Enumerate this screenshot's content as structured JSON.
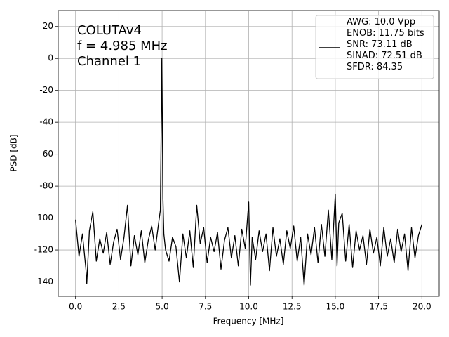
{
  "chart_data": {
    "type": "line",
    "xlabel": "Frequency [MHz]",
    "ylabel": "PSD [dB]",
    "annotation": [
      "COLUTAv4",
      "f = 4.985 MHz",
      "Channel 1"
    ],
    "xlim": [
      -1,
      21
    ],
    "ylim": [
      -149,
      30
    ],
    "xticks": [
      {
        "value": 0,
        "label": "0.0"
      },
      {
        "value": 2.5,
        "label": "2.5"
      },
      {
        "value": 5,
        "label": "5.0"
      },
      {
        "value": 7.5,
        "label": "7.5"
      },
      {
        "value": 10,
        "label": "10.0"
      },
      {
        "value": 12.5,
        "label": "12.5"
      },
      {
        "value": 15,
        "label": "15.0"
      },
      {
        "value": 17.5,
        "label": "17.5"
      },
      {
        "value": 20,
        "label": "20.0"
      }
    ],
    "yticks": [
      -140,
      -120,
      -100,
      -80,
      -60,
      -40,
      -20,
      0,
      20
    ],
    "grid": true,
    "legend": "upper right",
    "x": [
      0.0,
      0.2,
      0.4,
      0.6,
      0.65,
      0.8,
      1.0,
      1.2,
      1.4,
      1.6,
      1.8,
      2.0,
      2.2,
      2.4,
      2.6,
      2.8,
      3.0,
      3.2,
      3.4,
      3.6,
      3.8,
      4.0,
      4.2,
      4.4,
      4.6,
      4.8,
      4.9,
      4.985,
      5.05,
      5.1,
      5.2,
      5.4,
      5.6,
      5.8,
      6.0,
      6.2,
      6.4,
      6.6,
      6.8,
      7.0,
      7.2,
      7.4,
      7.6,
      7.8,
      8.0,
      8.2,
      8.4,
      8.6,
      8.8,
      9.0,
      9.2,
      9.4,
      9.6,
      9.8,
      10.0,
      10.1,
      10.2,
      10.4,
      10.6,
      10.8,
      11.0,
      11.2,
      11.4,
      11.6,
      11.8,
      12.0,
      12.2,
      12.4,
      12.6,
      12.8,
      13.0,
      13.2,
      13.4,
      13.6,
      13.8,
      14.0,
      14.2,
      14.4,
      14.6,
      14.8,
      15.0,
      15.1,
      15.2,
      15.4,
      15.6,
      15.8,
      16.0,
      16.2,
      16.4,
      16.6,
      16.8,
      17.0,
      17.2,
      17.4,
      17.6,
      17.8,
      18.0,
      18.2,
      18.4,
      18.6,
      18.8,
      19.0,
      19.2,
      19.4,
      19.6,
      19.8,
      20.0
    ],
    "series": [
      {
        "name": "AWG: 10.0 Vpp\nENOB: 11.75 bits\nSNR: 73.11 dB\nSINAD: 72.51 dB\nSFDR: 84.35",
        "color": "#000000",
        "values": [
          -101,
          -124,
          -110,
          -132,
          -141,
          -108,
          -96,
          -127,
          -113,
          -122,
          -109,
          -129,
          -115,
          -107,
          -126,
          -112,
          -92,
          -130,
          -111,
          -123,
          -108,
          -128,
          -114,
          -105,
          -120,
          -103,
          -95,
          0,
          -88,
          -110,
          -120,
          -127,
          -112,
          -118,
          -140,
          -110,
          -125,
          -108,
          -131,
          -92,
          -116,
          -106,
          -128,
          -112,
          -121,
          -109,
          -132,
          -114,
          -106,
          -125,
          -111,
          -130,
          -107,
          -119,
          -90,
          -142,
          -112,
          -126,
          -108,
          -121,
          -110,
          -133,
          -106,
          -124,
          -113,
          -129,
          -108,
          -119,
          -105,
          -127,
          -112,
          -142,
          -110,
          -123,
          -106,
          -128,
          -104,
          -124,
          -95,
          -126,
          -85,
          -130,
          -103,
          -97,
          -127,
          -104,
          -131,
          -108,
          -120,
          -111,
          -129,
          -107,
          -122,
          -112,
          -130,
          -106,
          -124,
          -113,
          -128,
          -107,
          -121,
          -110,
          -133,
          -106,
          -125,
          -111,
          -104
        ]
      }
    ]
  }
}
